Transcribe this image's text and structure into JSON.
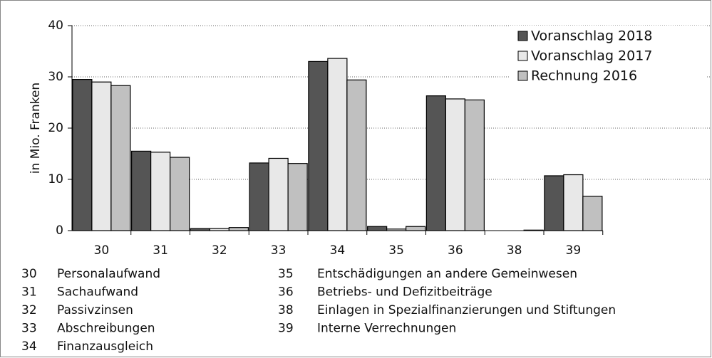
{
  "chart_data": {
    "type": "bar",
    "ylabel": "in Mio. Franken",
    "categories": [
      "30",
      "31",
      "32",
      "33",
      "34",
      "35",
      "36",
      "38",
      "39"
    ],
    "series": [
      {
        "name": "Voranschlag 2018",
        "color": "#555555",
        "values": [
          29.5,
          15.5,
          0.4,
          13.2,
          33.0,
          0.8,
          26.3,
          0,
          10.7
        ]
      },
      {
        "name": "Voranschlag 2017",
        "color": "#e8e8e8",
        "values": [
          29.0,
          15.3,
          0.4,
          14.1,
          33.6,
          0.3,
          25.7,
          0,
          10.9
        ]
      },
      {
        "name": "Rechnung 2016",
        "color": "#c0c0c0",
        "values": [
          28.3,
          14.3,
          0.6,
          13.1,
          29.4,
          0.8,
          25.5,
          0.1,
          6.7
        ]
      }
    ],
    "ylim": [
      0,
      40
    ],
    "yticks": [
      0,
      10,
      20,
      30,
      40
    ],
    "grid": true,
    "legend": "upper right",
    "notes": [
      {
        "code": "30",
        "label": "Personalaufwand"
      },
      {
        "code": "31",
        "label": "Sachaufwand"
      },
      {
        "code": "32",
        "label": "Passivzinsen"
      },
      {
        "code": "33",
        "label": "Abschreibungen"
      },
      {
        "code": "34",
        "label": "Finanzausgleich"
      },
      {
        "code": "35",
        "label": "Entschädigungen an andere Gemeinwesen"
      },
      {
        "code": "36",
        "label": "Betriebs- und Defizitbeiträge"
      },
      {
        "code": "38",
        "label": "Einlagen in Spezialfinanzierungen und Stiftungen"
      },
      {
        "code": "39",
        "label": "Interne Verrechnungen"
      }
    ]
  }
}
